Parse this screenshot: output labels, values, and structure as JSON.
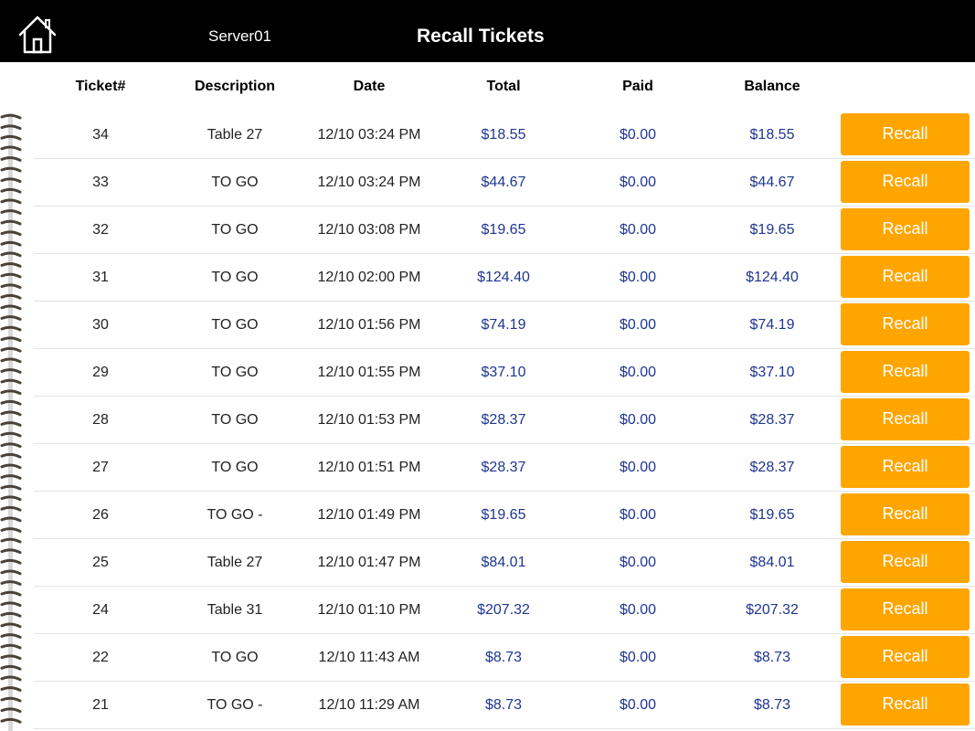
{
  "header": {
    "server": "Server01",
    "title": "Recall Tickets"
  },
  "columns": {
    "ticket": "Ticket#",
    "description": "Description",
    "date": "Date",
    "total": "Total",
    "paid": "Paid",
    "balance": "Balance"
  },
  "colors": {
    "topbar": "#000000",
    "accent": "#ffa500",
    "money_text": "#1f3590"
  },
  "icons": {
    "home": "home-icon",
    "binding": "spiral-binding"
  },
  "tickets": [
    {
      "ticket": "34",
      "description": "Table 27",
      "date": "12/10 03:24 PM",
      "total": "$18.55",
      "paid": "$0.00",
      "balance": "$18.55",
      "action": "Recall"
    },
    {
      "ticket": "33",
      "description": "TO GO",
      "date": "12/10 03:24 PM",
      "total": "$44.67",
      "paid": "$0.00",
      "balance": "$44.67",
      "action": "Recall"
    },
    {
      "ticket": "32",
      "description": "TO GO",
      "date": "12/10 03:08 PM",
      "total": "$19.65",
      "paid": "$0.00",
      "balance": "$19.65",
      "action": "Recall"
    },
    {
      "ticket": "31",
      "description": "TO GO",
      "date": "12/10 02:00 PM",
      "total": "$124.40",
      "paid": "$0.00",
      "balance": "$124.40",
      "action": "Recall"
    },
    {
      "ticket": "30",
      "description": "TO GO",
      "date": "12/10 01:56 PM",
      "total": "$74.19",
      "paid": "$0.00",
      "balance": "$74.19",
      "action": "Recall"
    },
    {
      "ticket": "29",
      "description": "TO GO",
      "date": "12/10 01:55 PM",
      "total": "$37.10",
      "paid": "$0.00",
      "balance": "$37.10",
      "action": "Recall"
    },
    {
      "ticket": "28",
      "description": "TO GO",
      "date": "12/10 01:53 PM",
      "total": "$28.37",
      "paid": "$0.00",
      "balance": "$28.37",
      "action": "Recall"
    },
    {
      "ticket": "27",
      "description": "TO GO",
      "date": "12/10 01:51 PM",
      "total": "$28.37",
      "paid": "$0.00",
      "balance": "$28.37",
      "action": "Recall"
    },
    {
      "ticket": "26",
      "description": "TO GO -",
      "date": "12/10 01:49 PM",
      "total": "$19.65",
      "paid": "$0.00",
      "balance": "$19.65",
      "action": "Recall"
    },
    {
      "ticket": "25",
      "description": "Table 27",
      "date": "12/10 01:47 PM",
      "total": "$84.01",
      "paid": "$0.00",
      "balance": "$84.01",
      "action": "Recall"
    },
    {
      "ticket": "24",
      "description": "Table 31",
      "date": "12/10 01:10 PM",
      "total": "$207.32",
      "paid": "$0.00",
      "balance": "$207.32",
      "action": "Recall"
    },
    {
      "ticket": "22",
      "description": "TO GO",
      "date": "12/10 11:43 AM",
      "total": "$8.73",
      "paid": "$0.00",
      "balance": "$8.73",
      "action": "Recall"
    },
    {
      "ticket": "21",
      "description": "TO GO -",
      "date": "12/10 11:29 AM",
      "total": "$8.73",
      "paid": "$0.00",
      "balance": "$8.73",
      "action": "Recall"
    }
  ]
}
